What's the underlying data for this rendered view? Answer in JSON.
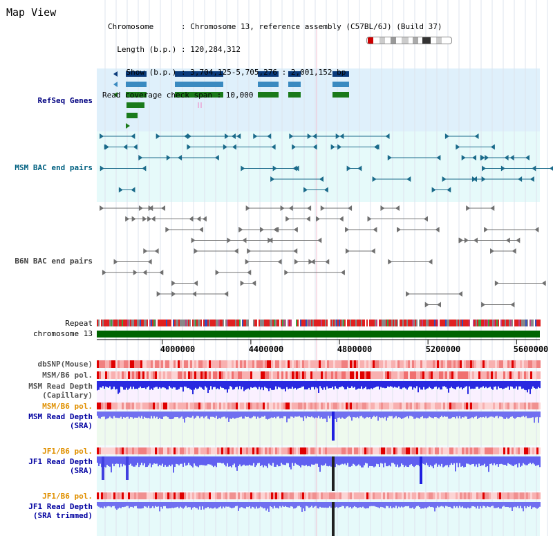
{
  "header": {
    "title": "Map View",
    "info_lines": [
      "Chromosome      : Chromosome 13, reference assembly (C57BL/6J) (Build 37)",
      "  Length (b.p.) : 120,284,312",
      "    Show (b.p.) : 3,704,125-5,705,276 : 2,001,152 bp",
      "Read coverage check span : 10,000"
    ]
  },
  "tracks": {
    "refseq": {
      "label": "RefSeq Genes",
      "color": "#000080"
    },
    "msm_bac": {
      "label": "MSM BAC end pairs",
      "color": "#006080"
    },
    "b6n_bac": {
      "label": "B6N BAC end pairs",
      "color": "#404040"
    },
    "repeat": {
      "label": "Repeat"
    },
    "chromosome": {
      "label": "chromosome 13"
    },
    "dbsnp": {
      "label": "dbSNP(Mouse)"
    },
    "msm_b6_pol1": {
      "label": "MSM/B6 pol."
    },
    "msm_depth_cap": {
      "label": "MSM Read Depth\n(Capillary)"
    },
    "msm_b6_pol2": {
      "label": "MSM/B6 pol."
    },
    "msm_depth_sra": {
      "label": "MSM Read Depth\n(SRA)"
    },
    "jf1_b6_pol1": {
      "label": "JF1/B6 pol."
    },
    "jf1_depth_sra": {
      "label": "JF1 Read Depth\n(SRA)"
    },
    "jf1_b6_pol2": {
      "label": "JF1/B6 pol."
    },
    "jf1_depth_trim": {
      "label": "JF1 Read Depth\n(SRA trimmed)"
    }
  },
  "axis": {
    "ticks": [
      "4000000",
      "4400000",
      "4800000",
      "5200000",
      "5600000"
    ],
    "tick_values": [
      4000000,
      4400000,
      4800000,
      5200000,
      5600000
    ],
    "range": [
      3704125,
      5705276
    ]
  },
  "colors": {
    "refseq_bg": "#dff0fb",
    "msm_bg": "#e6fafa",
    "chromosome_bar": "#006400",
    "depth_blue": "#4040ff",
    "pol_red": "#f08080",
    "label_navy": "#0000a0",
    "label_orange": "#e09000",
    "label_teal": "#006080"
  }
}
